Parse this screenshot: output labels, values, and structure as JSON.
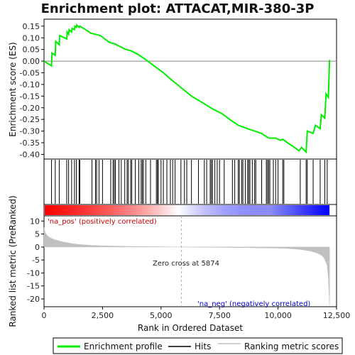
{
  "chart_data": {
    "type": "line",
    "title": "Enrichment plot: ATTACAT,MIR-380-3P",
    "panels": {
      "enrichment": {
        "ylabel": "Enrichment score (ES)",
        "ylim": [
          -0.42,
          0.18
        ],
        "yticks": [
          0.15,
          0.1,
          0.05,
          0.0,
          -0.05,
          -0.1,
          -0.15,
          -0.2,
          -0.25,
          -0.3,
          -0.35,
          -0.4
        ],
        "ytick_labels": [
          "0.15",
          "0.10",
          "0.05",
          "0.00",
          "-0.05",
          "-0.10",
          "-0.15",
          "-0.20",
          "-0.25",
          "-0.30",
          "-0.35",
          "-0.40"
        ],
        "series": [
          {
            "name": "Enrichment profile",
            "color": "#00ee00",
            "x": [
              0,
              320,
              340,
              480,
              500,
              650,
              670,
              970,
              990,
              1050,
              1070,
              1180,
              1200,
              1300,
              1320,
              1380,
              1400,
              1500,
              1530,
              1700,
              2000,
              2200,
              2400,
              2800,
              3000,
              3200,
              3500,
              3700,
              4000,
              4300,
              4700,
              5100,
              5500,
              5874,
              6300,
              6800,
              7200,
              7600,
              8000,
              8300,
              8700,
              9000,
              9300,
              9600,
              9900,
              10100,
              10200,
              10400,
              10700,
              10900,
              11000,
              11200,
              11250,
              11500,
              11600,
              11800,
              11850,
              12000,
              12050,
              12150,
              12200
            ],
            "y": [
              0.0,
              -0.02,
              0.035,
              0.025,
              0.085,
              0.07,
              0.11,
              0.095,
              0.125,
              0.115,
              0.135,
              0.125,
              0.14,
              0.135,
              0.15,
              0.145,
              0.155,
              0.145,
              0.15,
              0.14,
              0.12,
              0.115,
              0.11,
              0.08,
              0.075,
              0.065,
              0.05,
              0.045,
              0.03,
              0.01,
              -0.02,
              -0.05,
              -0.085,
              -0.115,
              -0.15,
              -0.18,
              -0.205,
              -0.225,
              -0.255,
              -0.275,
              -0.29,
              -0.3,
              -0.31,
              -0.33,
              -0.33,
              -0.34,
              -0.335,
              -0.35,
              -0.37,
              -0.385,
              -0.37,
              -0.39,
              -0.3,
              -0.31,
              -0.275,
              -0.29,
              -0.23,
              -0.245,
              -0.14,
              -0.155,
              0.005
            ]
          }
        ],
        "zero_line": 0.0
      },
      "hits": {
        "label": "Hits",
        "positions": [
          320,
          480,
          650,
          970,
          1050,
          1180,
          1300,
          1380,
          1500,
          1530,
          2050,
          2200,
          2250,
          2350,
          2500,
          2850,
          2950,
          3000,
          3050,
          3200,
          3300,
          3450,
          3550,
          3600,
          3700,
          3750,
          3900,
          4050,
          4150,
          4200,
          4250,
          4350,
          4550,
          4800,
          4850,
          4880,
          5000,
          5100,
          5250,
          5400,
          5500,
          5600,
          5850,
          6000,
          6100,
          6300,
          6600,
          6850,
          6950,
          7100,
          7150,
          7200,
          7300,
          7400,
          7500,
          7700,
          8050,
          8150,
          8300,
          8350,
          8450,
          8500,
          8600,
          8700,
          8750,
          8800,
          8900,
          9000,
          9050,
          9300,
          9500,
          9550,
          9600,
          9650,
          9800,
          9900,
          10000,
          10200,
          10250,
          10950,
          11200,
          11250,
          11500,
          11800,
          12000,
          12100
        ]
      },
      "ranking_bar": {
        "pos_color": "#ff0000",
        "neg_color": "#0000ff",
        "mid_color": "#ffffff"
      },
      "ranked_metric": {
        "ylabel": "Ranked list metric (PreRanked)",
        "xlabel": "Rank in Ordered Dataset",
        "ylim": [
          -23,
          12
        ],
        "yticks": [
          10,
          5,
          0,
          -5,
          -10,
          -15,
          -20
        ],
        "ytick_labels": [
          "10",
          "5",
          "0",
          "-5",
          "-10",
          "-15",
          "-20"
        ],
        "xlim": [
          0,
          12500
        ],
        "xticks": [
          0,
          2500,
          5000,
          7500,
          10000,
          12500
        ],
        "xtick_labels": [
          "0",
          "2,500",
          "5,000",
          "7,500",
          "10,000",
          "12,500"
        ],
        "series": [
          {
            "name": "Ranking metric scores",
            "color": "#c0c0c0",
            "x": [
              0,
              50,
              150,
              300,
              500,
              800,
              1200,
              1600,
              2000,
              2500,
              3000,
              4000,
              5000,
              5874,
              7000,
              8000,
              9000,
              10000,
              10500,
              11000,
              11400,
              11700,
              11900,
              12000,
              12100,
              12150,
              12200
            ],
            "y": [
              7.5,
              5.5,
              4.3,
              3.4,
              2.7,
              2.0,
              1.3,
              0.9,
              0.65,
              0.45,
              0.35,
              0.2,
              0.1,
              0.0,
              -0.1,
              -0.2,
              -0.3,
              -0.45,
              -0.6,
              -1.0,
              -1.6,
              -2.4,
              -3.5,
              -4.8,
              -7.0,
              -12.0,
              -22.5
            ]
          }
        ],
        "annotations": {
          "pos_label": "'na_pos' (positively correlated)",
          "neg_label": "'na_neg' (negatively correlated)",
          "zero_cross": "Zero cross at 5874",
          "pos_color": "#cc0000",
          "neg_color": "#0000cc",
          "zero_cross_x": 5874
        }
      }
    },
    "legend": {
      "placement": "bottom",
      "entries": [
        {
          "label": "Enrichment profile",
          "color": "#00ee00"
        },
        {
          "label": "Hits",
          "color": "#000000"
        },
        {
          "label": "Ranking metric scores",
          "color": "#c0c0c0"
        }
      ]
    }
  }
}
